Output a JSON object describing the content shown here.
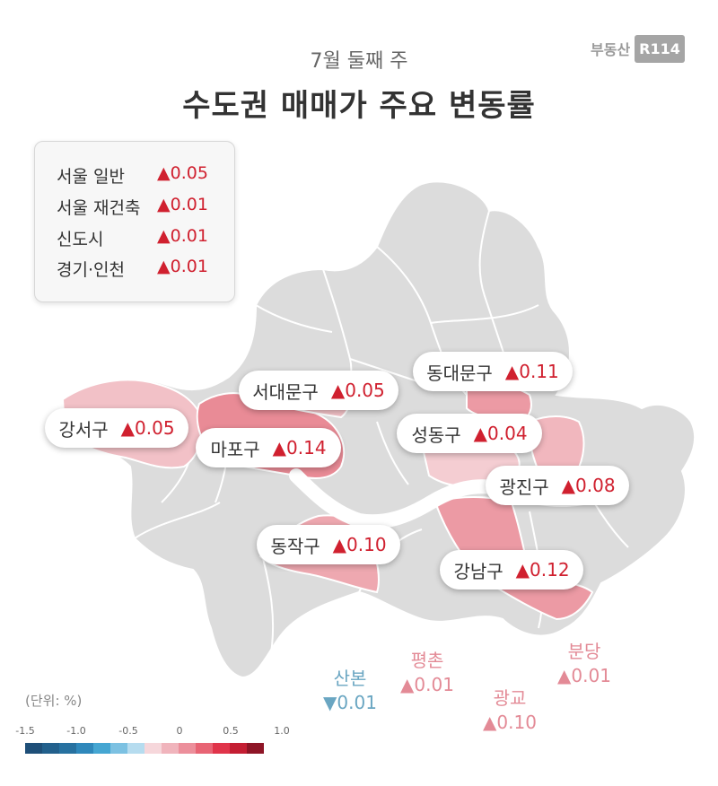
{
  "header": {
    "subtitle": "7월 둘째 주",
    "title": "수도권 매매가 주요 변동률",
    "logo_text": "부동산",
    "logo_box": "R114"
  },
  "summary": [
    {
      "label": "서울 일반",
      "value": "▲0.05"
    },
    {
      "label": "서울 재건축",
      "value": "▲0.01"
    },
    {
      "label": "신도시",
      "value": "▲0.01"
    },
    {
      "label": "경기·인천",
      "value": "▲0.01"
    }
  ],
  "districts": [
    {
      "name": "강서구",
      "value": "▲0.05",
      "change": 0.05,
      "color": "#f2c1c7"
    },
    {
      "name": "마포구",
      "value": "▲0.14",
      "change": 0.14,
      "color": "#e98b96"
    },
    {
      "name": "서대문구",
      "value": "▲0.05",
      "change": 0.05,
      "color": "#f2c1c7"
    },
    {
      "name": "동대문구",
      "value": "▲0.11",
      "change": 0.11,
      "color": "#ec9aa4"
    },
    {
      "name": "성동구",
      "value": "▲0.04",
      "change": 0.04,
      "color": "#f4cdd2"
    },
    {
      "name": "광진구",
      "value": "▲0.08",
      "change": 0.08,
      "color": "#f1b7be"
    },
    {
      "name": "동작구",
      "value": "▲0.10",
      "change": 0.1,
      "color": "#eea8b0"
    },
    {
      "name": "강남구",
      "value": "▲0.12",
      "change": 0.12,
      "color": "#ec9aa4"
    }
  ],
  "new_towns": [
    {
      "name": "평촌",
      "value": "▲0.01",
      "color": "#e38a96"
    },
    {
      "name": "분당",
      "value": "▲0.01",
      "color": "#e38a96"
    },
    {
      "name": "산본",
      "value": "▼0.01",
      "color": "#6aa6c2"
    },
    {
      "name": "광교",
      "value": "▲0.10",
      "color": "#e38a96"
    }
  ],
  "legend": {
    "unit_label": "(단위: %)",
    "ticks": [
      "-1.5",
      "-1.0",
      "-0.5",
      "0",
      "0.5",
      "1.0"
    ],
    "colors": [
      "#1e4f78",
      "#22608c",
      "#2771a0",
      "#2f88bb",
      "#45a6d2",
      "#7cc1e2",
      "#b6dcef",
      "#f6d7db",
      "#f0b4bc",
      "#ec8f9b",
      "#e86474",
      "#e0344a",
      "#c41e33",
      "#8e1526"
    ]
  },
  "map_colors": {
    "base": "#dcdcdc",
    "river": "#ffffff"
  }
}
